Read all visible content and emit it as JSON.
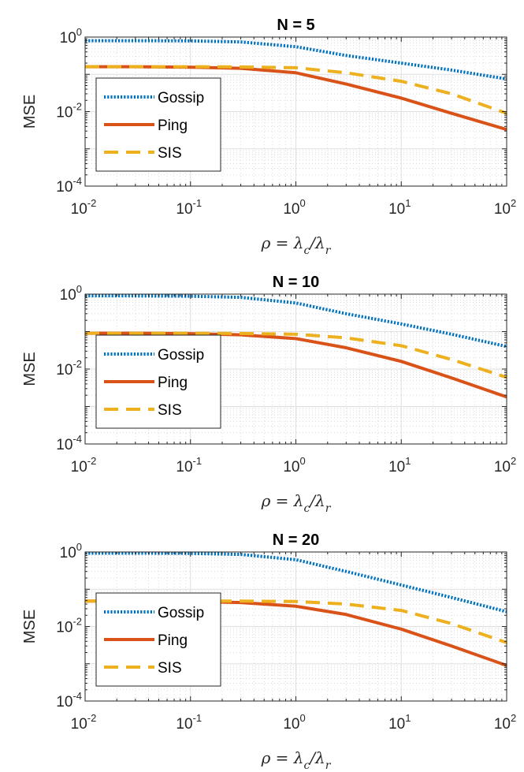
{
  "chart_data": [
    {
      "type": "line",
      "title": "N = 5",
      "xlabel": {
        "pre": "ρ = λ",
        "sub1": "c",
        "mid": "/λ",
        "sub2": "r"
      },
      "ylabel": "MSE",
      "xscale": "log",
      "yscale": "log",
      "xlim": [
        0.01,
        100
      ],
      "ylim": [
        0.0001,
        1
      ],
      "grid": true,
      "legend_position": "lower-left",
      "x_ticks": [
        {
          "base": "10",
          "exp": "-2"
        },
        {
          "base": "10",
          "exp": "-1"
        },
        {
          "base": "10",
          "exp": "0"
        },
        {
          "base": "10",
          "exp": "1"
        },
        {
          "base": "10",
          "exp": "2"
        }
      ],
      "y_ticks": [
        {
          "base": "10",
          "exp": "-4"
        },
        {
          "base": "10",
          "exp": "-2"
        },
        {
          "base": "10",
          "exp": "0"
        }
      ],
      "x": [
        0.01,
        0.03,
        0.1,
        0.3,
        1,
        3,
        10,
        30,
        100
      ],
      "series": [
        {
          "name": "Gossip",
          "color": "#0072BD",
          "style": "dotted",
          "values": [
            0.8,
            0.8,
            0.79,
            0.74,
            0.55,
            0.32,
            0.2,
            0.13,
            0.075
          ]
        },
        {
          "name": "Ping",
          "color": "#D95319",
          "style": "solid",
          "values": [
            0.16,
            0.16,
            0.155,
            0.145,
            0.11,
            0.055,
            0.023,
            0.009,
            0.0033
          ]
        },
        {
          "name": "SIS",
          "color": "#EDB120",
          "style": "dashed",
          "values": [
            0.16,
            0.16,
            0.16,
            0.158,
            0.15,
            0.11,
            0.065,
            0.03,
            0.009
          ]
        }
      ]
    },
    {
      "type": "line",
      "title": "N = 10",
      "xlabel": {
        "pre": "ρ = λ",
        "sub1": "c",
        "mid": "/λ",
        "sub2": "r"
      },
      "ylabel": "MSE",
      "xscale": "log",
      "yscale": "log",
      "xlim": [
        0.01,
        100
      ],
      "ylim": [
        0.0001,
        1
      ],
      "grid": true,
      "legend_position": "lower-left",
      "x_ticks": [
        {
          "base": "10",
          "exp": "-2"
        },
        {
          "base": "10",
          "exp": "-1"
        },
        {
          "base": "10",
          "exp": "0"
        },
        {
          "base": "10",
          "exp": "1"
        },
        {
          "base": "10",
          "exp": "2"
        }
      ],
      "y_ticks": [
        {
          "base": "10",
          "exp": "-4"
        },
        {
          "base": "10",
          "exp": "-2"
        },
        {
          "base": "10",
          "exp": "0"
        }
      ],
      "x": [
        0.01,
        0.03,
        0.1,
        0.3,
        1,
        3,
        10,
        30,
        100
      ],
      "series": [
        {
          "name": "Gossip",
          "color": "#0072BD",
          "style": "dotted",
          "values": [
            0.9,
            0.9,
            0.88,
            0.82,
            0.58,
            0.3,
            0.16,
            0.085,
            0.04
          ]
        },
        {
          "name": "Ping",
          "color": "#D95319",
          "style": "solid",
          "values": [
            0.09,
            0.09,
            0.088,
            0.082,
            0.065,
            0.037,
            0.016,
            0.0058,
            0.0018
          ]
        },
        {
          "name": "SIS",
          "color": "#EDB120",
          "style": "dashed",
          "values": [
            0.09,
            0.09,
            0.09,
            0.089,
            0.085,
            0.068,
            0.042,
            0.018,
            0.006
          ]
        }
      ]
    },
    {
      "type": "line",
      "title": "N = 20",
      "xlabel": {
        "pre": "ρ = λ",
        "sub1": "c",
        "mid": "/λ",
        "sub2": "r"
      },
      "ylabel": "MSE",
      "xscale": "log",
      "yscale": "log",
      "xlim": [
        0.01,
        100
      ],
      "ylim": [
        0.0001,
        1
      ],
      "grid": true,
      "legend_position": "lower-left",
      "x_ticks": [
        {
          "base": "10",
          "exp": "-2"
        },
        {
          "base": "10",
          "exp": "-1"
        },
        {
          "base": "10",
          "exp": "0"
        },
        {
          "base": "10",
          "exp": "1"
        },
        {
          "base": "10",
          "exp": "2"
        }
      ],
      "y_ticks": [
        {
          "base": "10",
          "exp": "-4"
        },
        {
          "base": "10",
          "exp": "-2"
        },
        {
          "base": "10",
          "exp": "0"
        }
      ],
      "x": [
        0.01,
        0.03,
        0.1,
        0.3,
        1,
        3,
        10,
        30,
        100
      ],
      "series": [
        {
          "name": "Gossip",
          "color": "#0072BD",
          "style": "dotted",
          "values": [
            0.93,
            0.93,
            0.92,
            0.86,
            0.62,
            0.3,
            0.13,
            0.06,
            0.025
          ]
        },
        {
          "name": "Ping",
          "color": "#D95319",
          "style": "solid",
          "values": [
            0.048,
            0.048,
            0.047,
            0.044,
            0.035,
            0.021,
            0.0085,
            0.003,
            0.0009
          ]
        },
        {
          "name": "SIS",
          "color": "#EDB120",
          "style": "dashed",
          "values": [
            0.048,
            0.048,
            0.048,
            0.048,
            0.047,
            0.04,
            0.027,
            0.012,
            0.0037
          ]
        }
      ]
    }
  ]
}
